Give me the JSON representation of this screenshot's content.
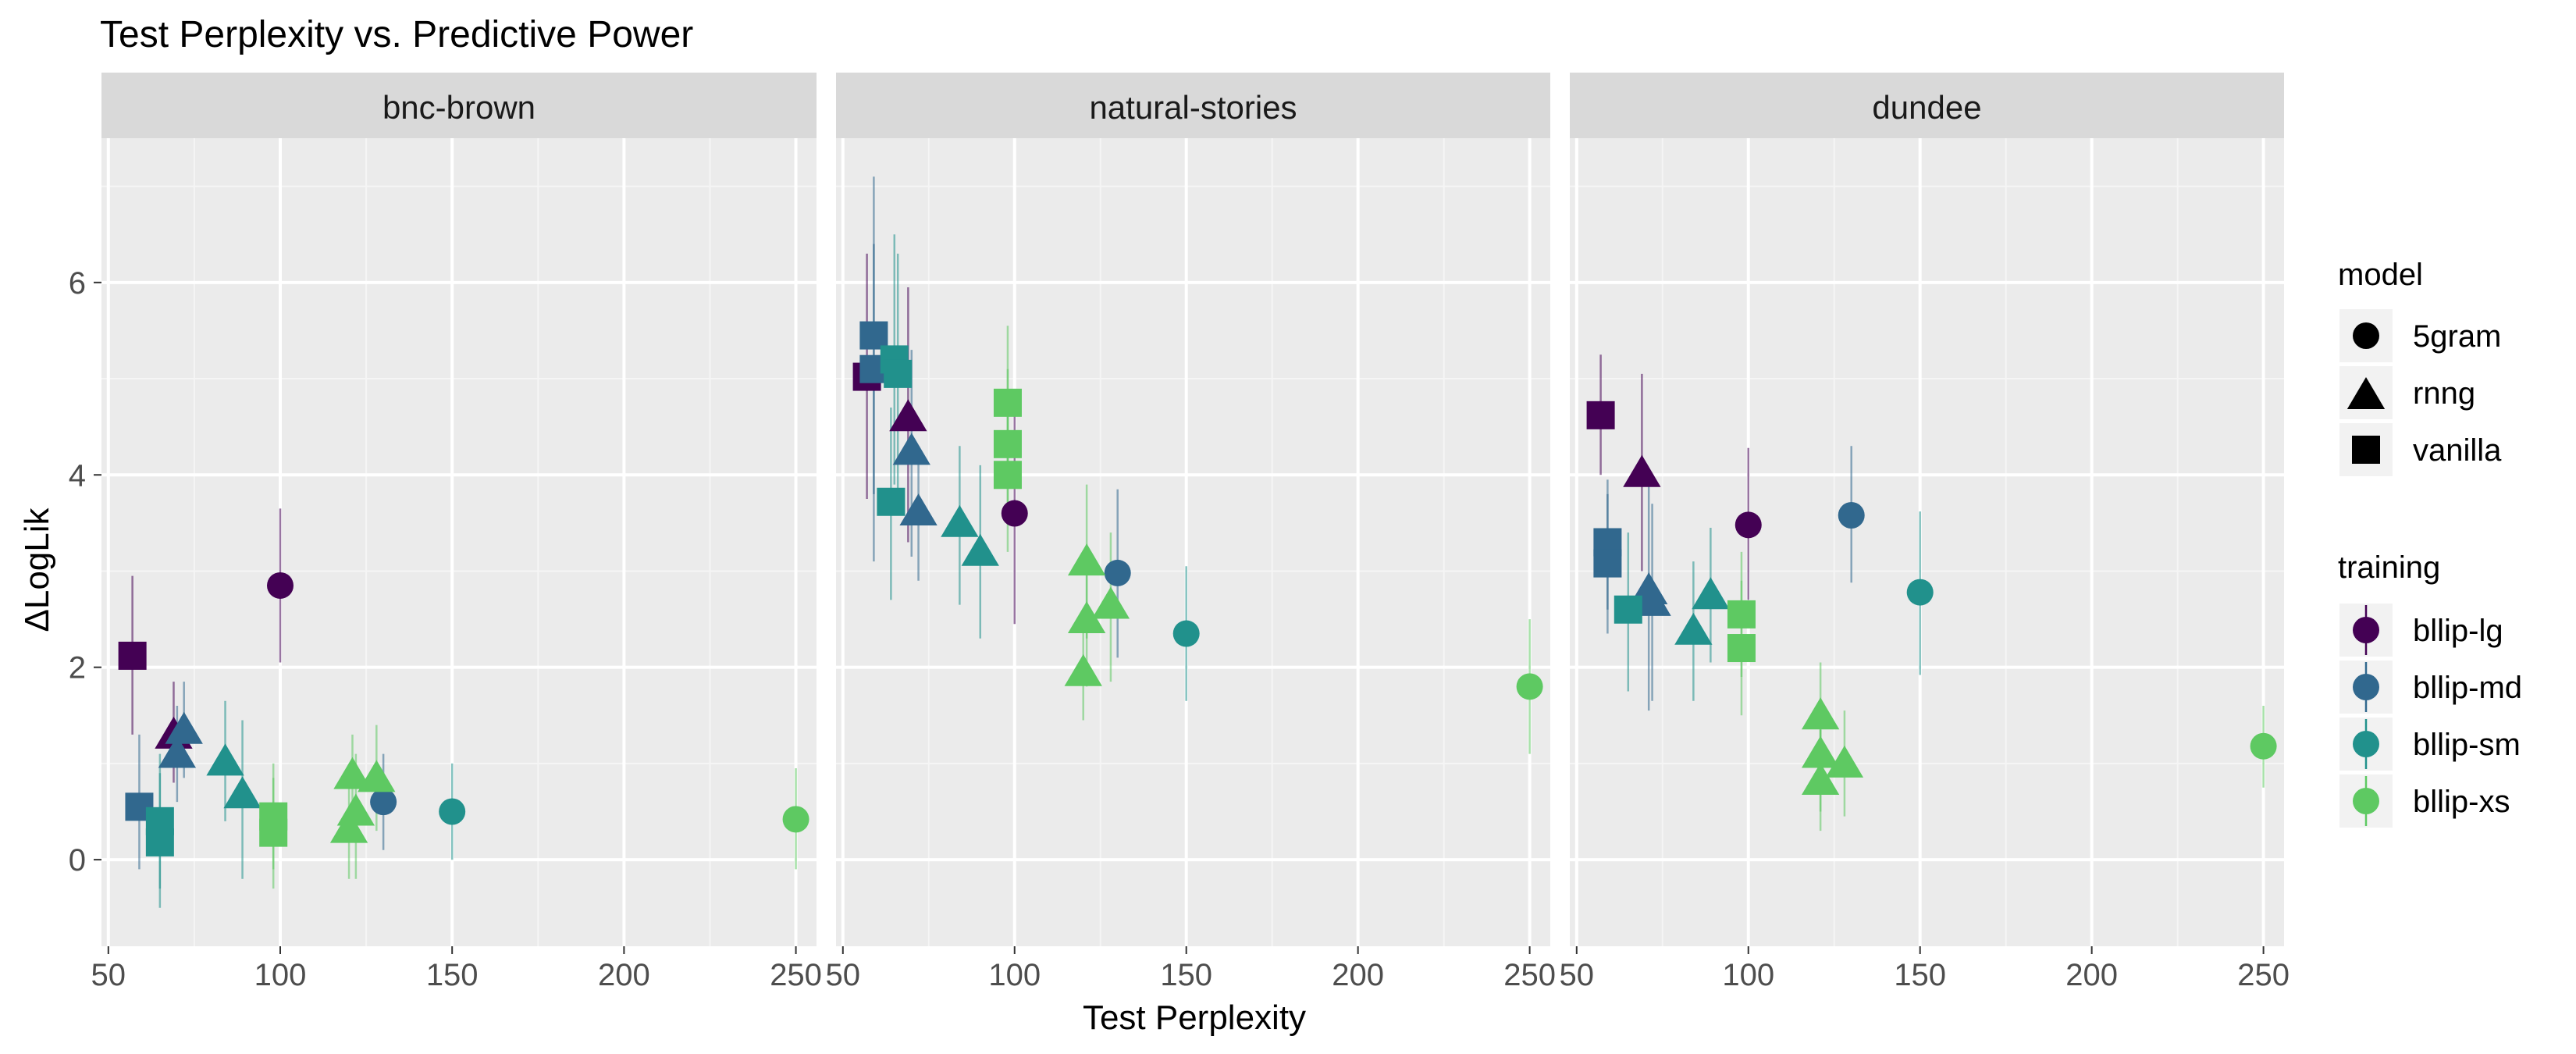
{
  "chart_data": {
    "type": "scatter",
    "title": "Test Perplexity vs. Predictive Power",
    "xlabel": "Test Perplexity",
    "ylabel": "ΔLogLik",
    "xlim": [
      48,
      256
    ],
    "ylim": [
      -0.9,
      7.5
    ],
    "x_ticks": [
      50,
      100,
      150,
      200,
      250
    ],
    "y_ticks": [
      0,
      2,
      4,
      6
    ],
    "grid": true,
    "legend_position": "right",
    "panels": [
      "bnc-brown",
      "natural-stories",
      "dundee"
    ],
    "legends": {
      "model": {
        "title": "model",
        "entries": [
          {
            "label": "5gram",
            "shape": "circle"
          },
          {
            "label": "rnng",
            "shape": "triangle"
          },
          {
            "label": "vanilla",
            "shape": "square"
          }
        ]
      },
      "training": {
        "title": "training",
        "entries": [
          {
            "label": "bllip-lg",
            "color": "#440154"
          },
          {
            "label": "bllip-md",
            "color": "#31688e"
          },
          {
            "label": "bllip-sm",
            "color": "#21918c"
          },
          {
            "label": "bllip-xs",
            "color": "#5ec962"
          }
        ]
      }
    },
    "points": [
      {
        "panel": "bnc-brown",
        "model": "vanilla",
        "training": "bllip-lg",
        "x": 57,
        "y": 2.12,
        "lo": 1.3,
        "hi": 2.95
      },
      {
        "panel": "bnc-brown",
        "model": "5gram",
        "training": "bllip-lg",
        "x": 100,
        "y": 2.85,
        "lo": 2.05,
        "hi": 3.65
      },
      {
        "panel": "bnc-brown",
        "model": "rnng",
        "training": "bllip-lg",
        "x": 69,
        "y": 1.3,
        "lo": 0.8,
        "hi": 1.85
      },
      {
        "panel": "bnc-brown",
        "model": "vanilla",
        "training": "bllip-md",
        "x": 59,
        "y": 0.55,
        "lo": -0.1,
        "hi": 1.3
      },
      {
        "panel": "bnc-brown",
        "model": "rnng",
        "training": "bllip-md",
        "x": 72,
        "y": 1.35,
        "lo": 0.85,
        "hi": 1.85
      },
      {
        "panel": "bnc-brown",
        "model": "rnng",
        "training": "bllip-md",
        "x": 70,
        "y": 1.1,
        "lo": 0.6,
        "hi": 1.6
      },
      {
        "panel": "bnc-brown",
        "model": "5gram",
        "training": "bllip-md",
        "x": 130,
        "y": 0.6,
        "lo": 0.1,
        "hi": 1.1
      },
      {
        "panel": "bnc-brown",
        "model": "vanilla",
        "training": "bllip-sm",
        "x": 65,
        "y": 0.4,
        "lo": -0.3,
        "hi": 1.1
      },
      {
        "panel": "bnc-brown",
        "model": "vanilla",
        "training": "bllip-sm",
        "x": 65,
        "y": 0.18,
        "lo": -0.5,
        "hi": 0.9
      },
      {
        "panel": "bnc-brown",
        "model": "rnng",
        "training": "bllip-sm",
        "x": 84,
        "y": 1.02,
        "lo": 0.4,
        "hi": 1.65
      },
      {
        "panel": "bnc-brown",
        "model": "rnng",
        "training": "bllip-sm",
        "x": 89,
        "y": 0.68,
        "lo": -0.2,
        "hi": 1.45
      },
      {
        "panel": "bnc-brown",
        "model": "5gram",
        "training": "bllip-sm",
        "x": 150,
        "y": 0.5,
        "lo": 0.0,
        "hi": 1.0
      },
      {
        "panel": "bnc-brown",
        "model": "vanilla",
        "training": "bllip-xs",
        "x": 98,
        "y": 0.45,
        "lo": -0.1,
        "hi": 1.0
      },
      {
        "panel": "bnc-brown",
        "model": "vanilla",
        "training": "bllip-xs",
        "x": 98,
        "y": 0.28,
        "lo": -0.3,
        "hi": 0.85
      },
      {
        "panel": "bnc-brown",
        "model": "rnng",
        "training": "bllip-xs",
        "x": 121,
        "y": 0.88,
        "lo": 0.4,
        "hi": 1.3
      },
      {
        "panel": "bnc-brown",
        "model": "rnng",
        "training": "bllip-xs",
        "x": 128,
        "y": 0.85,
        "lo": 0.3,
        "hi": 1.4
      },
      {
        "panel": "bnc-brown",
        "model": "rnng",
        "training": "bllip-xs",
        "x": 122,
        "y": 0.5,
        "lo": -0.2,
        "hi": 1.1
      },
      {
        "panel": "bnc-brown",
        "model": "rnng",
        "training": "bllip-xs",
        "x": 120,
        "y": 0.32,
        "lo": -0.2,
        "hi": 0.85
      },
      {
        "panel": "bnc-brown",
        "model": "5gram",
        "training": "bllip-xs",
        "x": 250,
        "y": 0.42,
        "lo": -0.1,
        "hi": 0.95
      },
      {
        "panel": "natural-stories",
        "model": "vanilla",
        "training": "bllip-lg",
        "x": 57,
        "y": 5.02,
        "lo": 3.75,
        "hi": 6.3
      },
      {
        "panel": "natural-stories",
        "model": "rnng",
        "training": "bllip-lg",
        "x": 69,
        "y": 4.6,
        "lo": 3.3,
        "hi": 5.95
      },
      {
        "panel": "natural-stories",
        "model": "5gram",
        "training": "bllip-lg",
        "x": 100,
        "y": 3.6,
        "lo": 2.45,
        "hi": 4.75
      },
      {
        "panel": "natural-stories",
        "model": "vanilla",
        "training": "bllip-md",
        "x": 59,
        "y": 5.45,
        "lo": 3.8,
        "hi": 7.1
      },
      {
        "panel": "natural-stories",
        "model": "vanilla",
        "training": "bllip-md",
        "x": 59,
        "y": 5.1,
        "lo": 3.1,
        "hi": 6.4
      },
      {
        "panel": "natural-stories",
        "model": "rnng",
        "training": "bllip-md",
        "x": 70,
        "y": 4.25,
        "lo": 3.15,
        "hi": 5.3
      },
      {
        "panel": "natural-stories",
        "model": "rnng",
        "training": "bllip-md",
        "x": 72,
        "y": 3.62,
        "lo": 2.9,
        "hi": 4.3
      },
      {
        "panel": "natural-stories",
        "model": "5gram",
        "training": "bllip-md",
        "x": 130,
        "y": 2.98,
        "lo": 2.1,
        "hi": 3.85
      },
      {
        "panel": "natural-stories",
        "model": "vanilla",
        "training": "bllip-sm",
        "x": 65,
        "y": 5.2,
        "lo": 3.9,
        "hi": 6.5
      },
      {
        "panel": "natural-stories",
        "model": "vanilla",
        "training": "bllip-sm",
        "x": 66,
        "y": 5.05,
        "lo": 3.7,
        "hi": 6.3
      },
      {
        "panel": "natural-stories",
        "model": "vanilla",
        "training": "bllip-sm",
        "x": 64,
        "y": 3.72,
        "lo": 2.7,
        "hi": 4.7
      },
      {
        "panel": "natural-stories",
        "model": "rnng",
        "training": "bllip-sm",
        "x": 84,
        "y": 3.5,
        "lo": 2.65,
        "hi": 4.3
      },
      {
        "panel": "natural-stories",
        "model": "rnng",
        "training": "bllip-sm",
        "x": 90,
        "y": 3.2,
        "lo": 2.3,
        "hi": 4.1
      },
      {
        "panel": "natural-stories",
        "model": "5gram",
        "training": "bllip-sm",
        "x": 150,
        "y": 2.35,
        "lo": 1.65,
        "hi": 3.05
      },
      {
        "panel": "natural-stories",
        "model": "vanilla",
        "training": "bllip-xs",
        "x": 98,
        "y": 4.75,
        "lo": 3.95,
        "hi": 5.55
      },
      {
        "panel": "natural-stories",
        "model": "vanilla",
        "training": "bllip-xs",
        "x": 98,
        "y": 4.32,
        "lo": 3.5,
        "hi": 5.1
      },
      {
        "panel": "natural-stories",
        "model": "vanilla",
        "training": "bllip-xs",
        "x": 98,
        "y": 4.0,
        "lo": 3.2,
        "hi": 4.8
      },
      {
        "panel": "natural-stories",
        "model": "rnng",
        "training": "bllip-xs",
        "x": 121,
        "y": 3.1,
        "lo": 2.3,
        "hi": 3.9
      },
      {
        "panel": "natural-stories",
        "model": "rnng",
        "training": "bllip-xs",
        "x": 128,
        "y": 2.65,
        "lo": 1.85,
        "hi": 3.4
      },
      {
        "panel": "natural-stories",
        "model": "rnng",
        "training": "bllip-xs",
        "x": 121,
        "y": 2.5,
        "lo": 1.8,
        "hi": 3.2
      },
      {
        "panel": "natural-stories",
        "model": "rnng",
        "training": "bllip-xs",
        "x": 120,
        "y": 1.95,
        "lo": 1.45,
        "hi": 2.5
      },
      {
        "panel": "natural-stories",
        "model": "5gram",
        "training": "bllip-xs",
        "x": 250,
        "y": 1.8,
        "lo": 1.1,
        "hi": 2.5
      },
      {
        "panel": "dundee",
        "model": "vanilla",
        "training": "bllip-lg",
        "x": 57,
        "y": 4.62,
        "lo": 4.0,
        "hi": 5.25
      },
      {
        "panel": "dundee",
        "model": "rnng",
        "training": "bllip-lg",
        "x": 69,
        "y": 4.02,
        "lo": 3.0,
        "hi": 5.05
      },
      {
        "panel": "dundee",
        "model": "5gram",
        "training": "bllip-lg",
        "x": 100,
        "y": 3.48,
        "lo": 2.7,
        "hi": 4.28
      },
      {
        "panel": "dundee",
        "model": "vanilla",
        "training": "bllip-md",
        "x": 59,
        "y": 3.3,
        "lo": 2.6,
        "hi": 3.95
      },
      {
        "panel": "dundee",
        "model": "vanilla",
        "training": "bllip-md",
        "x": 59,
        "y": 3.08,
        "lo": 2.35,
        "hi": 3.8
      },
      {
        "panel": "dundee",
        "model": "rnng",
        "training": "bllip-md",
        "x": 71,
        "y": 2.8,
        "lo": 1.55,
        "hi": 4.05
      },
      {
        "panel": "dundee",
        "model": "rnng",
        "training": "bllip-md",
        "x": 72,
        "y": 2.68,
        "lo": 1.65,
        "hi": 3.7
      },
      {
        "panel": "dundee",
        "model": "5gram",
        "training": "bllip-md",
        "x": 130,
        "y": 3.58,
        "lo": 2.88,
        "hi": 4.3
      },
      {
        "panel": "dundee",
        "model": "vanilla",
        "training": "bllip-sm",
        "x": 65,
        "y": 2.6,
        "lo": 1.75,
        "hi": 3.4
      },
      {
        "panel": "dundee",
        "model": "rnng",
        "training": "bllip-sm",
        "x": 89,
        "y": 2.75,
        "lo": 2.05,
        "hi": 3.45
      },
      {
        "panel": "dundee",
        "model": "rnng",
        "training": "bllip-sm",
        "x": 84,
        "y": 2.38,
        "lo": 1.65,
        "hi": 3.1
      },
      {
        "panel": "dundee",
        "model": "5gram",
        "training": "bllip-sm",
        "x": 150,
        "y": 2.78,
        "lo": 1.92,
        "hi": 3.62
      },
      {
        "panel": "dundee",
        "model": "vanilla",
        "training": "bllip-xs",
        "x": 98,
        "y": 2.55,
        "lo": 1.9,
        "hi": 3.2
      },
      {
        "panel": "dundee",
        "model": "vanilla",
        "training": "bllip-xs",
        "x": 98,
        "y": 2.2,
        "lo": 1.5,
        "hi": 2.9
      },
      {
        "panel": "dundee",
        "model": "rnng",
        "training": "bllip-xs",
        "x": 121,
        "y": 1.5,
        "lo": 0.95,
        "hi": 2.05
      },
      {
        "panel": "dundee",
        "model": "rnng",
        "training": "bllip-xs",
        "x": 121,
        "y": 1.1,
        "lo": 0.5,
        "hi": 1.65
      },
      {
        "panel": "dundee",
        "model": "rnng",
        "training": "bllip-xs",
        "x": 128,
        "y": 1.0,
        "lo": 0.45,
        "hi": 1.55
      },
      {
        "panel": "dundee",
        "model": "rnng",
        "training": "bllip-xs",
        "x": 121,
        "y": 0.82,
        "lo": 0.3,
        "hi": 1.35
      },
      {
        "panel": "dundee",
        "model": "5gram",
        "training": "bllip-xs",
        "x": 250,
        "y": 1.18,
        "lo": 0.75,
        "hi": 1.6
      }
    ]
  }
}
